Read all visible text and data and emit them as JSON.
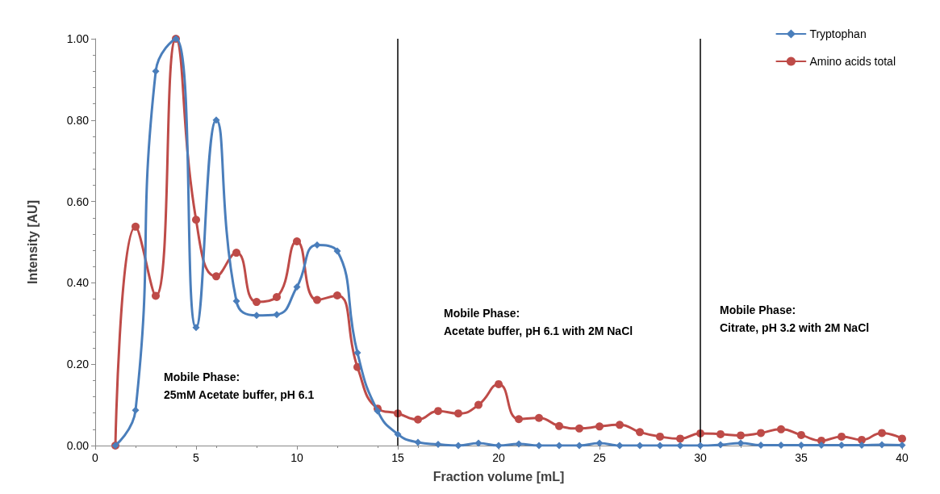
{
  "chart_data": {
    "type": "line",
    "xlabel": "Fraction volume [mL]",
    "ylabel": "Intensity [AU]",
    "x": [
      1,
      2,
      3,
      4,
      5,
      6,
      7,
      8,
      9,
      10,
      11,
      12,
      13,
      14,
      15,
      16,
      17,
      18,
      19,
      20,
      21,
      22,
      23,
      24,
      25,
      26,
      27,
      28,
      29,
      30,
      31,
      32,
      33,
      34,
      35,
      36,
      37,
      38,
      39,
      40
    ],
    "series": [
      {
        "name": "Tryptophan",
        "color": "#4a7ebb",
        "marker": "diamond",
        "values": [
          0,
          0.087,
          0.92,
          1.0,
          0.29,
          0.8,
          0.355,
          0.32,
          0.322,
          0.39,
          0.493,
          0.478,
          0.228,
          0.085,
          0.028,
          0.008,
          0.003,
          0,
          0.006,
          0,
          0.004,
          0,
          0,
          0,
          0.006,
          0,
          0,
          0,
          0,
          0,
          0.002,
          0.006,
          0.001,
          0.001,
          0.001,
          0.001,
          0.001,
          0.001,
          0.002,
          0.001
        ]
      },
      {
        "name": "Amino acids total",
        "color": "#be4b48",
        "marker": "circle",
        "values": [
          0,
          0.538,
          0.368,
          1.0,
          0.555,
          0.416,
          0.474,
          0.353,
          0.365,
          0.502,
          0.358,
          0.369,
          0.193,
          0.091,
          0.079,
          0.064,
          0.085,
          0.079,
          0.1,
          0.151,
          0.065,
          0.068,
          0.048,
          0.042,
          0.047,
          0.051,
          0.033,
          0.022,
          0.017,
          0.03,
          0.028,
          0.025,
          0.031,
          0.04,
          0.026,
          0.012,
          0.022,
          0.014,
          0.031,
          0.017
        ]
      }
    ],
    "xlim": [
      0,
      40
    ],
    "xticks": [
      0,
      5,
      10,
      15,
      20,
      25,
      30,
      35,
      40
    ],
    "ylim": [
      0,
      1
    ],
    "yticks": [
      {
        "value": 0,
        "label": "0.00"
      },
      {
        "value": 0.2,
        "label": "0.20"
      },
      {
        "value": 0.4,
        "label": "0.40"
      },
      {
        "value": 0.6,
        "label": "0.60"
      },
      {
        "value": 0.8,
        "label": "0.80"
      },
      {
        "value": 1,
        "label": "1.00"
      }
    ],
    "ref_lines": [
      {
        "axis": "x",
        "value": 15,
        "color": "#000000"
      },
      {
        "axis": "x",
        "value": 30,
        "color": "#000000"
      }
    ],
    "annotations": [
      "Mobile Phase:\n25mM Acetate buffer, pH 6.1",
      "Mobile Phase:\nAcetate buffer, pH 6.1 with 2M NaCl",
      "Mobile Phase:\nCitrate, pH 3.2 with 2M NaCl"
    ],
    "legend": "top right",
    "grid": false,
    "line_style": "solid"
  }
}
